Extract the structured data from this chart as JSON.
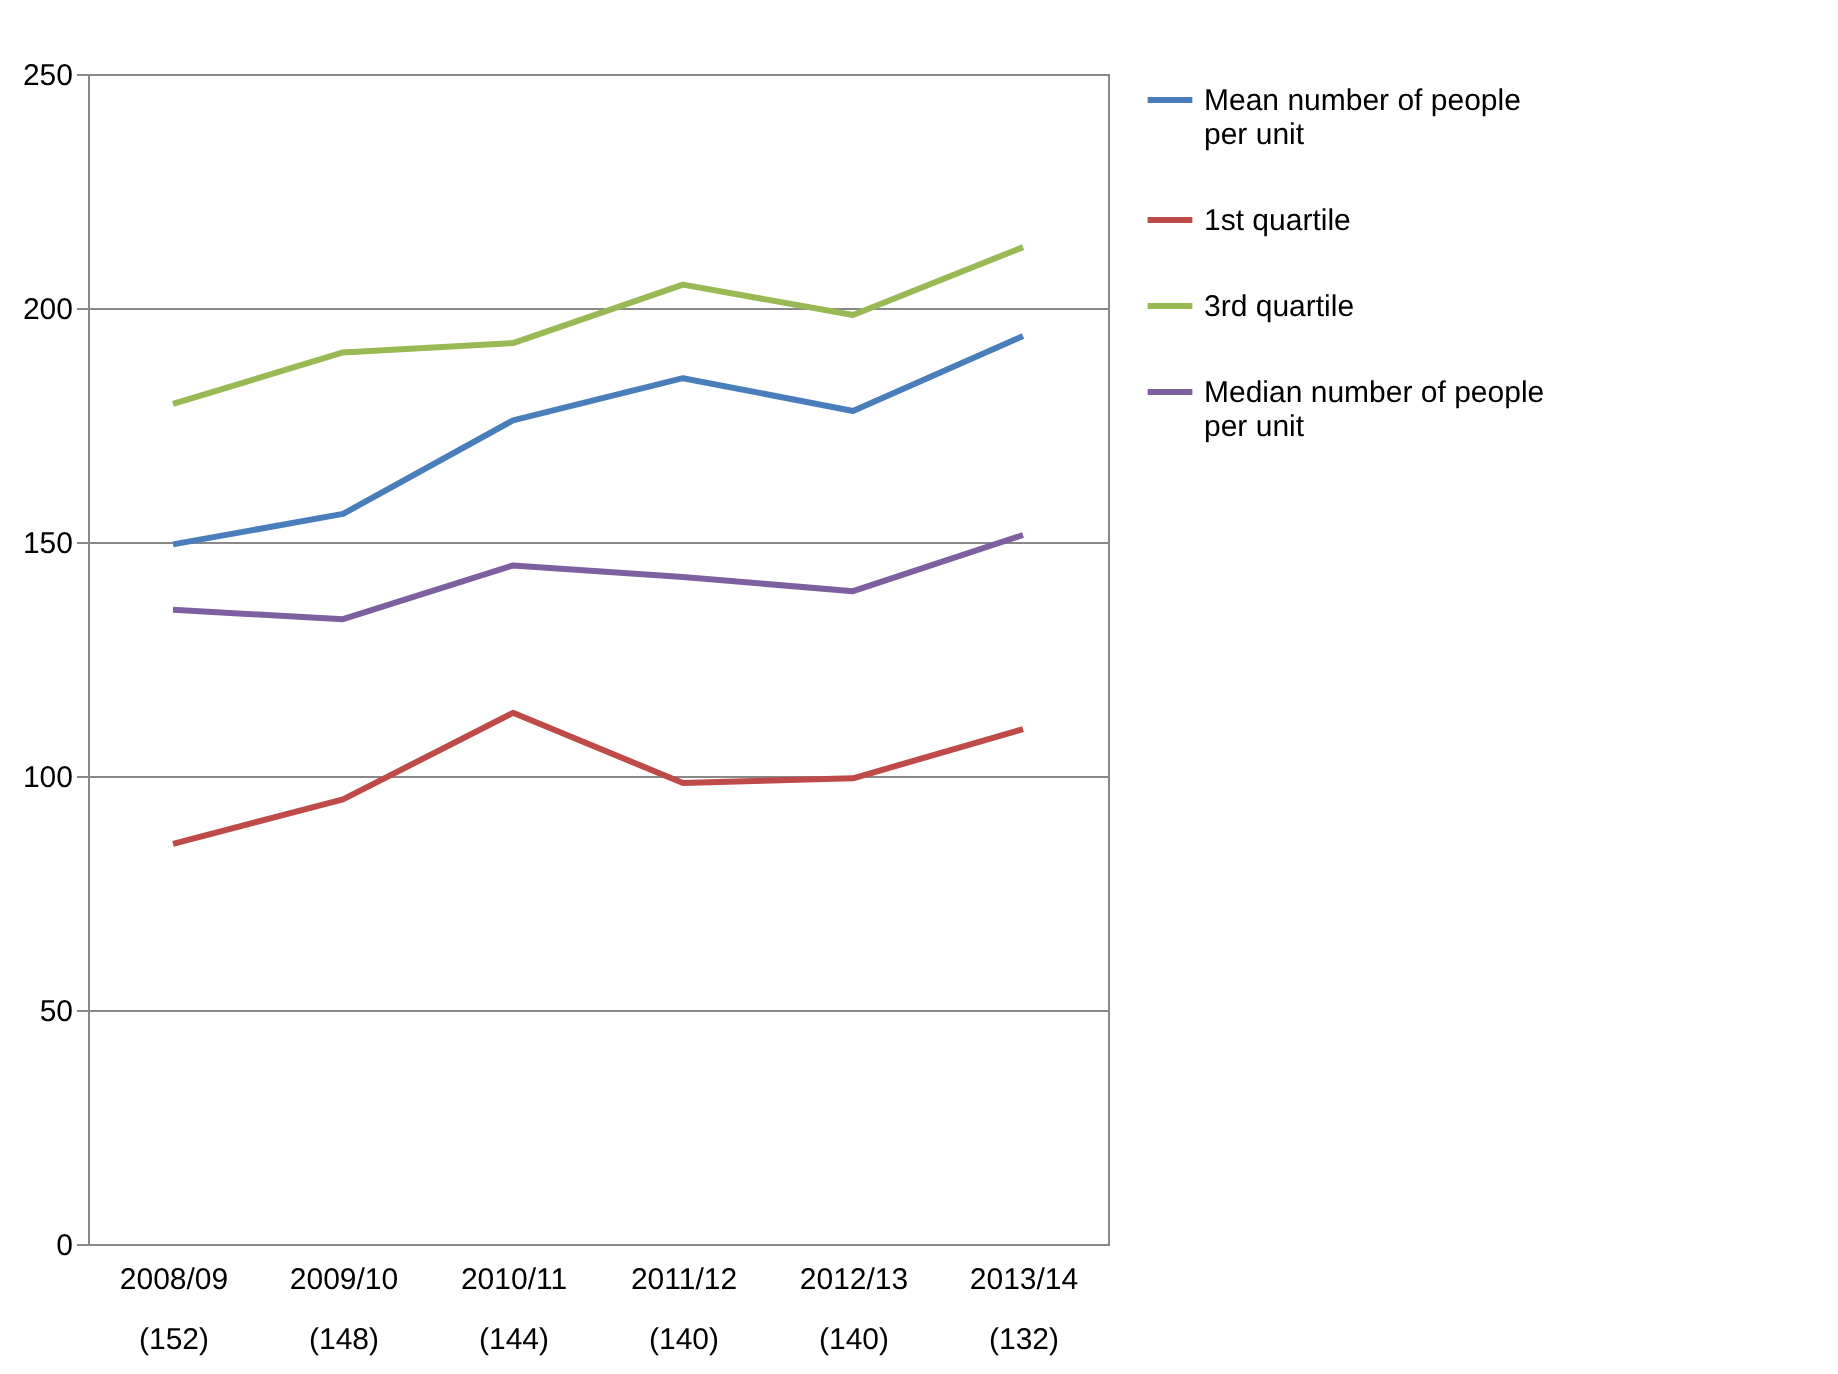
{
  "chart_data": {
    "type": "line",
    "categories": [
      "2008/09\n(152)",
      "2009/10\n(148)",
      "2010/11\n(144)",
      "2011/12\n(140)",
      "2012/13\n(140)",
      "2013/14\n(132)"
    ],
    "series": [
      {
        "name": "Mean number of people per unit",
        "color": "#4a7ebb",
        "values": [
          149.5,
          156,
          176,
          185,
          178,
          194
        ]
      },
      {
        "name": "1st quartile",
        "color": "#be4b48",
        "values": [
          85.5,
          95,
          113.5,
          98.5,
          99.5,
          110
        ]
      },
      {
        "name": "3rd quartile",
        "color": "#98b954",
        "values": [
          179.5,
          190.5,
          192.5,
          205,
          198.5,
          213
        ]
      },
      {
        "name": "Median number of people per unit",
        "color": "#7d60a0",
        "values": [
          135.5,
          133.5,
          145,
          142.5,
          139.5,
          151.5
        ]
      }
    ],
    "ylim": [
      0,
      250
    ],
    "yticks": [
      0,
      50,
      100,
      150,
      200,
      250
    ],
    "grid": "y",
    "legend": "right",
    "marker": "none",
    "line_style": "solid"
  }
}
